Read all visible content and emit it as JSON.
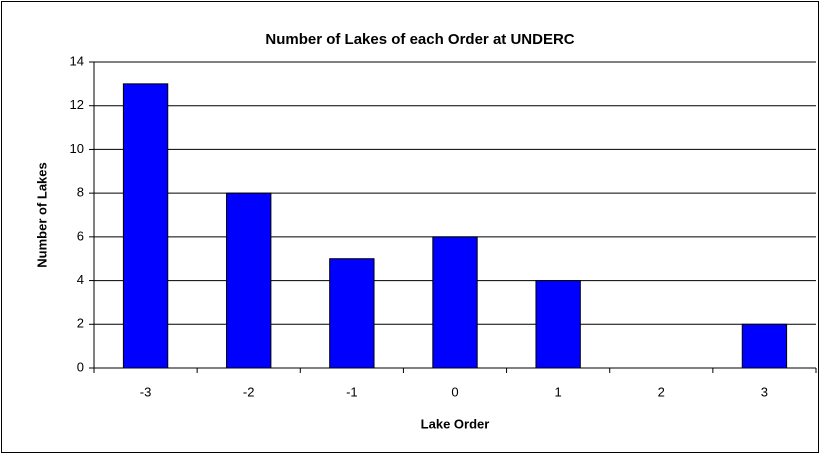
{
  "chart_data": {
    "type": "bar",
    "title": "Number of Lakes of each Order at UNDERC",
    "x_label": "Lake Order",
    "y_label": "Number of Lakes",
    "categories": [
      "-3",
      "-2",
      "-1",
      "0",
      "1",
      "2",
      "3"
    ],
    "values": [
      13,
      8,
      5,
      6,
      4,
      0,
      2
    ],
    "color": "#0000ff",
    "ylim": [
      0,
      14
    ],
    "yticks": [
      0,
      2,
      4,
      6,
      8,
      10,
      12,
      14
    ],
    "grid": true
  }
}
